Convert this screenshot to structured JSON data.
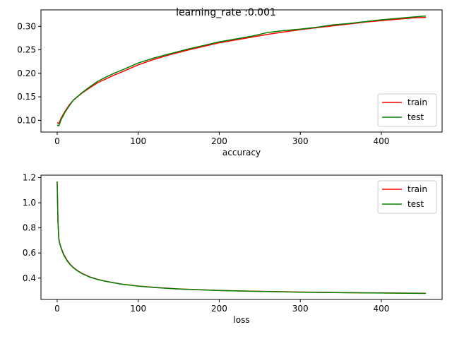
{
  "chart_data": {
    "suptitle": "learning_rate :0.001",
    "subplots": [
      {
        "type": "line",
        "xlabel": "accuracy",
        "ylabel": "",
        "xlim": [
          -20,
          475
        ],
        "ylim": [
          0.075,
          0.335
        ],
        "xticks": [
          0,
          100,
          200,
          300,
          400
        ],
        "yticks": [
          0.1,
          0.15,
          0.2,
          0.25,
          0.3
        ],
        "ytick_labels": [
          "0.10",
          "0.15",
          "0.20",
          "0.25",
          "0.30"
        ],
        "legend": "lower-right",
        "series": [
          {
            "name": "train",
            "color": "#ff0000",
            "x": [
              0,
              2,
              5,
              10,
              15,
              20,
              30,
              40,
              50,
              60,
              70,
              80,
              100,
              120,
              140,
              160,
              180,
              200,
              220,
              240,
              260,
              280,
              300,
              320,
              340,
              360,
              380,
              400,
              420,
              440,
              455
            ],
            "y": [
              0.095,
              0.093,
              0.105,
              0.12,
              0.133,
              0.143,
              0.157,
              0.169,
              0.18,
              0.188,
              0.196,
              0.203,
              0.218,
              0.23,
              0.24,
              0.249,
              0.257,
              0.265,
              0.271,
              0.277,
              0.283,
              0.288,
              0.293,
              0.297,
              0.301,
              0.305,
              0.309,
              0.312,
              0.315,
              0.318,
              0.319
            ]
          },
          {
            "name": "test",
            "color": "#008000",
            "x": [
              0,
              2,
              5,
              10,
              15,
              20,
              30,
              40,
              50,
              60,
              70,
              80,
              100,
              120,
              140,
              160,
              180,
              200,
              220,
              240,
              260,
              280,
              300,
              320,
              340,
              360,
              380,
              400,
              420,
              440,
              455
            ],
            "y": [
              0.09,
              0.088,
              0.102,
              0.118,
              0.131,
              0.143,
              0.158,
              0.171,
              0.183,
              0.192,
              0.2,
              0.207,
              0.222,
              0.233,
              0.242,
              0.251,
              0.259,
              0.267,
              0.273,
              0.279,
              0.287,
              0.291,
              0.294,
              0.298,
              0.303,
              0.306,
              0.31,
              0.314,
              0.317,
              0.32,
              0.322
            ]
          }
        ]
      },
      {
        "type": "line",
        "xlabel": "loss",
        "ylabel": "",
        "xlim": [
          -20,
          475
        ],
        "ylim": [
          0.23,
          1.22
        ],
        "xticks": [
          0,
          100,
          200,
          300,
          400
        ],
        "yticks": [
          0.4,
          0.6,
          0.8,
          1.0,
          1.2
        ],
        "ytick_labels": [
          "0.4",
          "0.6",
          "0.8",
          "1.0",
          "1.2"
        ],
        "legend": "upper-right",
        "series": [
          {
            "name": "train",
            "color": "#ff0000",
            "x": [
              0,
              1,
              2,
              3,
              5,
              8,
              12,
              16,
              20,
              25,
              30,
              40,
              50,
              60,
              80,
              100,
              120,
              150,
              200,
              250,
              300,
              350,
              400,
              455
            ],
            "y": [
              1.17,
              0.85,
              0.72,
              0.68,
              0.64,
              0.59,
              0.545,
              0.51,
              0.485,
              0.46,
              0.44,
              0.41,
              0.39,
              0.375,
              0.352,
              0.337,
              0.326,
              0.314,
              0.302,
              0.295,
              0.289,
              0.285,
              0.282,
              0.279
            ]
          },
          {
            "name": "test",
            "color": "#008000",
            "x": [
              0,
              1,
              2,
              3,
              5,
              8,
              12,
              16,
              20,
              25,
              30,
              40,
              50,
              60,
              80,
              100,
              120,
              150,
              200,
              250,
              300,
              350,
              400,
              455
            ],
            "y": [
              1.17,
              0.84,
              0.71,
              0.68,
              0.635,
              0.585,
              0.54,
              0.507,
              0.482,
              0.458,
              0.438,
              0.408,
              0.389,
              0.374,
              0.351,
              0.336,
              0.325,
              0.313,
              0.301,
              0.294,
              0.288,
              0.284,
              0.281,
              0.278
            ]
          }
        ]
      }
    ]
  }
}
